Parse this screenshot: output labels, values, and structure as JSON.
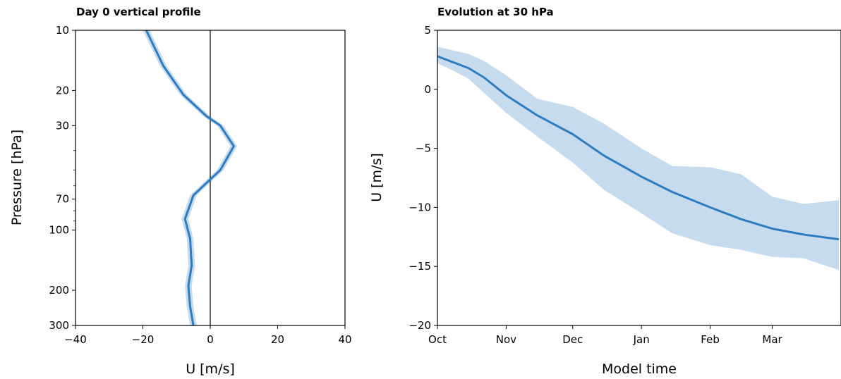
{
  "chart_data": [
    {
      "type": "line",
      "title": "Day 0 vertical profile",
      "xlabel": "U [m/s]",
      "ylabel": "Pressure [hPa]",
      "xlim": [
        -40,
        40
      ],
      "ylim": [
        300,
        10
      ],
      "yscale": "log",
      "xticks": [
        "−40",
        "−20",
        "0",
        "20",
        "40"
      ],
      "xtick_values": [
        -40,
        -20,
        0,
        20,
        40
      ],
      "yticks": [
        "10",
        "20",
        "30",
        "70",
        "100",
        "200",
        "300"
      ],
      "ytick_values": [
        10,
        20,
        30,
        70,
        100,
        200,
        300
      ],
      "zero_line": 0,
      "color": "#2f7bbf",
      "series": [
        {
          "x": [
            -19,
            -14,
            -8,
            -1,
            3,
            7,
            3,
            -2,
            -5,
            -7.5,
            -6,
            -5.5,
            -6.5,
            -6,
            -5
          ],
          "y": [
            10,
            15,
            21,
            27,
            30,
            38,
            50,
            60,
            67,
            88,
            110,
            150,
            190,
            240,
            300
          ],
          "band_lower": [
            -20,
            -15,
            -9,
            -2,
            2,
            6,
            2,
            -3,
            -6,
            -8.5,
            -7,
            -6.5,
            -7.5,
            -7,
            -6
          ],
          "band_upper": [
            -18,
            -13,
            -7,
            0,
            4,
            8,
            4,
            -1,
            -4,
            -6.5,
            -5,
            -4.5,
            -5.5,
            -5,
            -4
          ]
        }
      ]
    },
    {
      "type": "line",
      "title": "Evolution at 30 hPa",
      "xlabel": "Model time",
      "ylabel": "U [m/s]",
      "xlim": [
        "Oct 1",
        "Apr 1"
      ],
      "ylim": [
        -20,
        5
      ],
      "xticks": [
        "Oct",
        "Nov",
        "Dec",
        "Jan",
        "Feb",
        "Mar"
      ],
      "xtick_values": [
        "Oct 1",
        "Nov 1",
        "Dec 1",
        "Jan 1",
        "Feb 1",
        "Mar 1"
      ],
      "yticks": [
        "−20",
        "−15",
        "−10",
        "−5",
        "0",
        "5"
      ],
      "ytick_values": [
        -20,
        -15,
        -10,
        -5,
        0,
        5
      ],
      "color": "#2f7bbf",
      "band_color": "#c6dcee",
      "series": [
        {
          "x": [
            "Oct 1",
            "Oct 8",
            "Oct 15",
            "Oct 22",
            "Nov 1",
            "Nov 15",
            "Dec 1",
            "Dec 15",
            "Jan 1",
            "Jan 15",
            "Feb 1",
            "Feb 15",
            "Mar 1",
            "Mar 15",
            "Mar 31"
          ],
          "mean": [
            2.8,
            2.3,
            1.8,
            1.0,
            -0.5,
            -2.2,
            -3.8,
            -5.6,
            -7.4,
            -8.7,
            -10.0,
            -11.0,
            -11.8,
            -12.3,
            -12.7
          ],
          "lower": [
            2.2,
            1.6,
            0.9,
            -0.3,
            -2.0,
            -4.0,
            -6.2,
            -8.5,
            -10.5,
            -12.2,
            -13.2,
            -13.6,
            -14.2,
            -14.3,
            -15.3
          ],
          "upper": [
            3.6,
            3.3,
            3.0,
            2.4,
            1.2,
            -0.8,
            -1.5,
            -2.9,
            -5.0,
            -6.5,
            -6.6,
            -7.2,
            -9.1,
            -9.7,
            -9.4
          ]
        }
      ]
    }
  ]
}
